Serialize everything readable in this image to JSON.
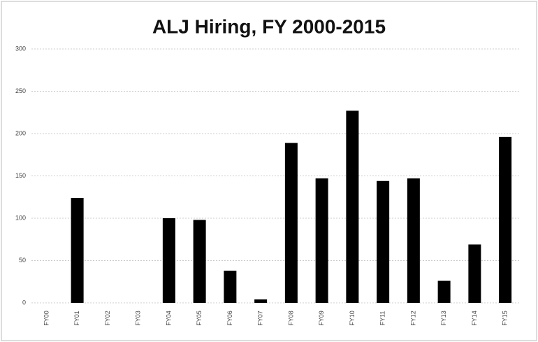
{
  "chart_data": {
    "type": "bar",
    "title": "ALJ Hiring, FY 2000-2015",
    "categories": [
      "FY00",
      "FY01",
      "FY02",
      "FY03",
      "FY04",
      "FY05",
      "FY06",
      "FY07",
      "FY08",
      "FY09",
      "FY10",
      "FY11",
      "FY12",
      "FY13",
      "FY14",
      "FY15"
    ],
    "values": [
      0,
      124,
      0,
      0,
      100,
      98,
      38,
      4,
      189,
      147,
      227,
      144,
      147,
      26,
      69,
      196
    ],
    "color": "#000000",
    "ylim": [
      0,
      300
    ],
    "yticks": [
      0,
      50,
      100,
      150,
      200,
      250,
      300
    ],
    "grid": true
  }
}
